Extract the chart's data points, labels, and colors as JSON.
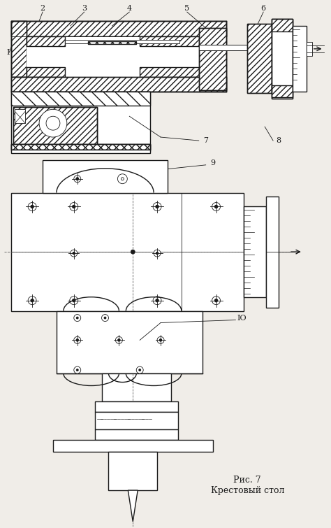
{
  "caption_line1": "Рис. 7",
  "caption_line2": "Крестовый стол",
  "bg_color": "#f0ede8",
  "line_color": "#1a1a1a",
  "fig_width": 4.74,
  "fig_height": 7.55,
  "dpi": 100
}
